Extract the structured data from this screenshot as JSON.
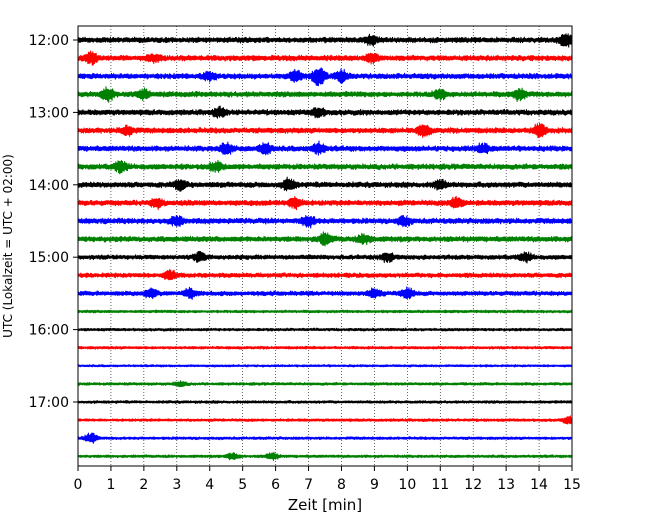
{
  "chart_data": {
    "type": "line",
    "title": "",
    "xlabel": "Zeit  [min]",
    "ylabel": "UTC (Lokalzeit = UTC + 02:00)",
    "xlim": [
      0,
      15
    ],
    "x_ticks": [
      0,
      1,
      2,
      3,
      4,
      5,
      6,
      7,
      8,
      9,
      10,
      11,
      12,
      13,
      14,
      15
    ],
    "x_tick_labels": [
      "0",
      "1",
      "2",
      "3",
      "4",
      "5",
      "6",
      "7",
      "8",
      "9",
      "10",
      "11",
      "12",
      "13",
      "14",
      "15"
    ],
    "y_tick_labels": [
      "12:00",
      "13:00",
      "14:00",
      "15:00",
      "16:00",
      "17:00"
    ],
    "y_tick_rows": [
      0,
      4,
      8,
      12,
      16,
      20
    ],
    "grid": "vertical dotted",
    "trace_interval_min": 15,
    "trace_colors": [
      "#000000",
      "#ff0000",
      "#0000ff",
      "#008000"
    ],
    "rows": [
      {
        "start": "12:00",
        "color": "#000000",
        "amp": 3,
        "events": [
          [
            8.9,
            4
          ],
          [
            14.8,
            6
          ]
        ]
      },
      {
        "start": "12:15",
        "color": "#ff0000",
        "amp": 3,
        "events": [
          [
            0.4,
            5
          ],
          [
            2.3,
            3
          ],
          [
            8.9,
            4
          ]
        ]
      },
      {
        "start": "12:30",
        "color": "#0000ff",
        "amp": 3,
        "events": [
          [
            4.0,
            4
          ],
          [
            6.6,
            5
          ],
          [
            7.3,
            9
          ],
          [
            8.0,
            5
          ]
        ]
      },
      {
        "start": "12:45",
        "color": "#008000",
        "amp": 3,
        "events": [
          [
            0.9,
            6
          ],
          [
            2.0,
            4
          ],
          [
            11.0,
            4
          ],
          [
            13.4,
            5
          ]
        ]
      },
      {
        "start": "13:00",
        "color": "#000000",
        "amp": 3,
        "events": [
          [
            4.3,
            4
          ],
          [
            7.3,
            4
          ]
        ]
      },
      {
        "start": "13:15",
        "color": "#ff0000",
        "amp": 3,
        "events": [
          [
            1.5,
            4
          ],
          [
            10.5,
            5
          ],
          [
            14.0,
            6
          ]
        ]
      },
      {
        "start": "13:30",
        "color": "#0000ff",
        "amp": 3,
        "events": [
          [
            4.5,
            5
          ],
          [
            5.7,
            5
          ],
          [
            7.3,
            5
          ],
          [
            12.3,
            4
          ]
        ]
      },
      {
        "start": "13:45",
        "color": "#008000",
        "amp": 3,
        "events": [
          [
            1.3,
            5
          ],
          [
            4.2,
            4
          ]
        ]
      },
      {
        "start": "14:00",
        "color": "#000000",
        "amp": 3,
        "events": [
          [
            3.1,
            4
          ],
          [
            6.4,
            5
          ],
          [
            11.0,
            4
          ]
        ]
      },
      {
        "start": "14:15",
        "color": "#ff0000",
        "amp": 3,
        "events": [
          [
            2.4,
            4
          ],
          [
            6.6,
            5
          ],
          [
            11.5,
            5
          ]
        ]
      },
      {
        "start": "14:30",
        "color": "#0000ff",
        "amp": 3,
        "events": [
          [
            3.0,
            4
          ],
          [
            7.0,
            5
          ],
          [
            9.9,
            4
          ]
        ]
      },
      {
        "start": "14:45",
        "color": "#008000",
        "amp": 3,
        "events": [
          [
            7.5,
            5
          ],
          [
            8.7,
            4
          ]
        ]
      },
      {
        "start": "15:00",
        "color": "#000000",
        "amp": 2.5,
        "events": [
          [
            3.7,
            4
          ],
          [
            9.4,
            4
          ],
          [
            13.6,
            4
          ]
        ]
      },
      {
        "start": "15:15",
        "color": "#ff0000",
        "amp": 2.5,
        "events": [
          [
            2.8,
            4
          ]
        ]
      },
      {
        "start": "15:30",
        "color": "#0000ff",
        "amp": 2.5,
        "events": [
          [
            2.2,
            4
          ],
          [
            3.4,
            4
          ],
          [
            9.0,
            4
          ],
          [
            10.0,
            5
          ]
        ]
      },
      {
        "start": "15:45",
        "color": "#008000",
        "amp": 1.5,
        "events": []
      },
      {
        "start": "16:00",
        "color": "#000000",
        "amp": 1.5,
        "events": []
      },
      {
        "start": "16:15",
        "color": "#ff0000",
        "amp": 1.5,
        "events": []
      },
      {
        "start": "16:30",
        "color": "#0000ff",
        "amp": 1.2,
        "events": []
      },
      {
        "start": "16:45",
        "color": "#008000",
        "amp": 1.5,
        "events": [
          [
            3.1,
            2
          ]
        ]
      },
      {
        "start": "17:00",
        "color": "#000000",
        "amp": 1.5,
        "events": []
      },
      {
        "start": "17:15",
        "color": "#ff0000",
        "amp": 1.5,
        "events": [
          [
            14.9,
            3
          ]
        ]
      },
      {
        "start": "17:30",
        "color": "#0000ff",
        "amp": 1.5,
        "events": [
          [
            0.4,
            5
          ]
        ]
      },
      {
        "start": "17:45",
        "color": "#008000",
        "amp": 1.5,
        "events": [
          [
            4.7,
            3
          ],
          [
            5.9,
            3
          ]
        ]
      }
    ]
  }
}
